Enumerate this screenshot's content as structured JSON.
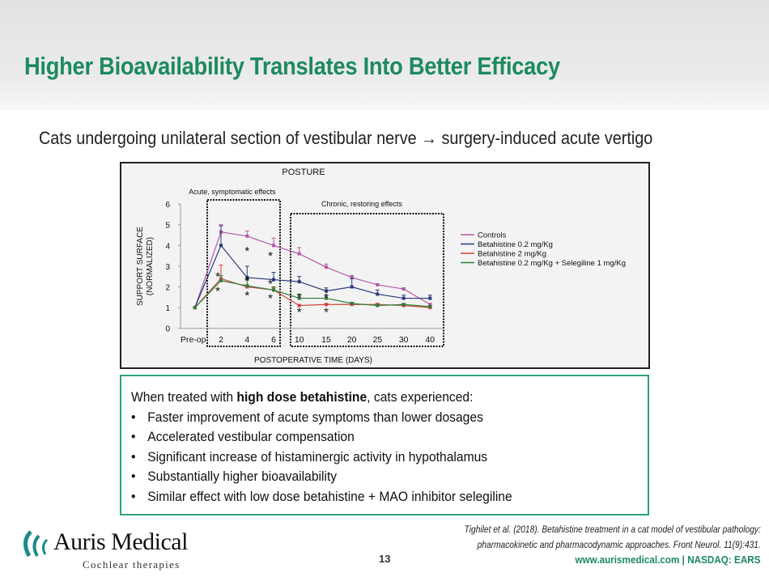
{
  "slide": {
    "title": "Higher Bioavailability Translates Into Better Efficacy",
    "subtitle": "Cats undergoing unilateral section of vestibular nerve → surgery-induced acute vertigo",
    "summary": {
      "lead_pre": "When treated with ",
      "lead_bold": "high dose betahistine",
      "lead_post": ", cats experienced:",
      "bullets": [
        "Faster improvement of acute symptoms than lower dosages",
        "Accelerated vestibular compensation",
        "Significant increase of histaminergic activity in hypothalamus",
        "Substantially higher bioavailability",
        "Similar effect with low dose betahistine + MAO inhibitor selegiline"
      ]
    },
    "citation_line1": "Tighilet et al. (2018). Betahistine treatment in a cat model of vestibular pathology:",
    "citation_line2": "pharmacokinetic and pharmacodynamic approaches. Front Neurol. 11(9):431.",
    "page_number": "13",
    "footer": "www.aurismedical.com | NASDAQ: EARS",
    "logo": {
      "name": "Auris Medical",
      "tagline": "Cochlear therapies",
      "color": "#1d8a8a"
    }
  },
  "chart_data": {
    "type": "line",
    "title": "POSTURE",
    "xlabel": "POSTOPERATIVE TIME (DAYS)",
    "ylabel_line1": "SUPPORT SURFACE",
    "ylabel_line2": "(NORMALIZED)",
    "ylim": [
      0,
      6
    ],
    "yticks": [
      "0",
      "1",
      "2",
      "3",
      "4",
      "5",
      "6"
    ],
    "categories": [
      "Pre-op",
      "2",
      "4",
      "6",
      "10",
      "15",
      "20",
      "25",
      "30",
      "40"
    ],
    "regions": [
      {
        "label": "Acute, symptomatic effects",
        "from": "2",
        "to": "6"
      },
      {
        "label": "Chronic, restoring effects",
        "from": "10",
        "to": "40"
      }
    ],
    "series": [
      {
        "name": "Controls",
        "color": "#b25aa8",
        "values": [
          1,
          4.65,
          4.45,
          4.0,
          3.6,
          2.95,
          2.45,
          2.1,
          1.9,
          1.15
        ],
        "err": [
          0,
          0.35,
          0.25,
          0.35,
          0.3,
          0.15,
          0.1,
          0.05,
          0.05,
          0.05
        ]
      },
      {
        "name": "Betahistine 0.2 mg/Kg",
        "color": "#2b3a7a",
        "values": [
          1,
          4.0,
          2.45,
          2.35,
          2.25,
          1.8,
          2.0,
          1.65,
          1.45,
          1.45
        ],
        "err": [
          0,
          0.95,
          0.55,
          0.35,
          0.25,
          0.15,
          0.4,
          0.2,
          0.15,
          0.15
        ]
      },
      {
        "name": "Betahistine    2 mg/Kg",
        "color": "#d0453a",
        "values": [
          1,
          2.4,
          2.0,
          1.85,
          1.1,
          1.15,
          1.15,
          1.15,
          1.1,
          1.0
        ],
        "err": [
          0,
          0.65,
          0.1,
          0.1,
          0.05,
          0.05,
          0.05,
          0.05,
          0.05,
          0.05
        ]
      },
      {
        "name": "Betahistine 0.2 mg/Kg  + Selegiline 1 mg/Kg",
        "color": "#2e7d3a",
        "values": [
          1,
          2.3,
          2.05,
          1.85,
          1.45,
          1.45,
          1.2,
          1.1,
          1.15,
          1.05
        ],
        "err": [
          0,
          0.25,
          0.3,
          0.15,
          0.2,
          0.15,
          0.05,
          0.05,
          0.05,
          0.05
        ]
      }
    ],
    "annotations": [
      {
        "text": "*",
        "category": "4",
        "y": 3.55
      },
      {
        "text": "*",
        "category": "6",
        "y": 3.3
      },
      {
        "text": "*\n*",
        "category": "2",
        "y": 1.6
      },
      {
        "text": "*\n*",
        "category": "4",
        "y": 1.4
      },
      {
        "text": "*\n*",
        "category": "6",
        "y": 1.25
      },
      {
        "text": "*\n*",
        "category": "10",
        "y": 0.6
      },
      {
        "text": "*\n*",
        "category": "15",
        "y": 0.6
      }
    ],
    "legend_position": "right"
  }
}
